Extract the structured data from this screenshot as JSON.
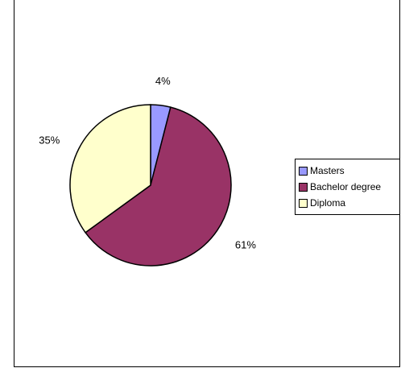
{
  "chart_data": {
    "type": "pie",
    "title": "",
    "categories": [
      "Masters",
      "Bachelor degree",
      "Diploma"
    ],
    "values": [
      4,
      61,
      35
    ],
    "labels": [
      "4%",
      "61%",
      "35%"
    ],
    "colors": [
      "#9999ff",
      "#993366",
      "#ffffcc"
    ],
    "legend_position": "right",
    "start": "top",
    "direction": "clockwise"
  },
  "legend": {
    "items": [
      {
        "label": "Masters",
        "color": "#9999ff"
      },
      {
        "label": "Bachelor degree",
        "color": "#993366"
      },
      {
        "label": "Diploma",
        "color": "#ffffcc"
      }
    ]
  }
}
